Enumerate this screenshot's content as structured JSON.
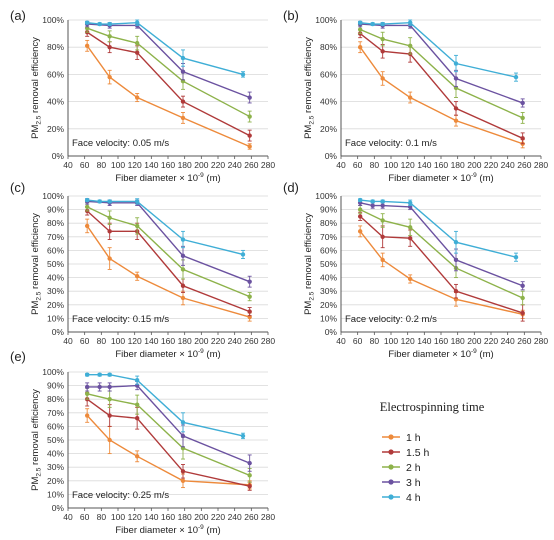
{
  "figure": {
    "series_names": [
      "1 h",
      "1.5 h",
      "2 h",
      "3 h",
      "4 h"
    ],
    "series_colors": [
      "#ED8A3B",
      "#B03A3A",
      "#8DB24A",
      "#6B52A0",
      "#3FAED6"
    ],
    "legend_title": "Electrospinning time",
    "ylabel_main": "PM",
    "ylabel_sub": "2.5",
    "ylabel_rest": " removal efficiency",
    "xlabel_main": "Fiber diameter × 10",
    "xlabel_sup": "-9",
    "xlabel_rest": " (m)"
  },
  "chart_data": [
    {
      "type": "line",
      "panel_label": "(a)",
      "annotation": "Face velocity: 0.05 m/s",
      "xlim": [
        40,
        280
      ],
      "ylim": [
        0,
        100
      ],
      "x_ticks": [
        40,
        60,
        80,
        100,
        120,
        140,
        160,
        180,
        200,
        220,
        240,
        260,
        280
      ],
      "y_ticks": [
        "0%",
        "20%",
        "40%",
        "60%",
        "80%",
        "100%"
      ],
      "series": [
        {
          "name": "1 h",
          "x": [
            63,
            90,
            123,
            178,
            258
          ],
          "y": [
            81,
            58,
            43,
            28,
            7
          ],
          "err": [
            4,
            5,
            3,
            4,
            2
          ]
        },
        {
          "name": "1.5 h",
          "x": [
            63,
            90,
            123,
            178,
            258
          ],
          "y": [
            91,
            80,
            76,
            40,
            15
          ],
          "err": [
            3,
            4,
            5,
            4,
            4
          ]
        },
        {
          "name": "2 h",
          "x": [
            63,
            90,
            123,
            178,
            258
          ],
          "y": [
            94,
            88,
            83,
            55,
            29
          ],
          "err": [
            3,
            4,
            5,
            6,
            4
          ]
        },
        {
          "name": "3 h",
          "x": [
            63,
            90,
            123,
            178,
            258
          ],
          "y": [
            97,
            96,
            96,
            62,
            43
          ],
          "err": [
            2,
            2,
            2,
            6,
            4
          ]
        },
        {
          "name": "4 h",
          "x": [
            63,
            78,
            90,
            123,
            178,
            250
          ],
          "y": [
            98,
            97,
            97,
            98,
            72,
            60
          ],
          "err": [
            1,
            1,
            1,
            2,
            6,
            2
          ]
        }
      ]
    },
    {
      "type": "line",
      "panel_label": "(b)",
      "annotation": "Face velocity: 0.1 m/s",
      "xlim": [
        40,
        280
      ],
      "ylim": [
        0,
        100
      ],
      "x_ticks": [
        40,
        60,
        80,
        100,
        120,
        140,
        160,
        180,
        200,
        220,
        240,
        260,
        280
      ],
      "y_ticks": [
        "0%",
        "20%",
        "40%",
        "60%",
        "80%",
        "100%"
      ],
      "series": [
        {
          "name": "1 h",
          "x": [
            63,
            90,
            123,
            178,
            258
          ],
          "y": [
            80,
            57,
            43,
            26,
            9
          ],
          "err": [
            4,
            5,
            4,
            4,
            3
          ]
        },
        {
          "name": "1.5 h",
          "x": [
            63,
            90,
            123,
            178,
            258
          ],
          "y": [
            90,
            77,
            75,
            35,
            13
          ],
          "err": [
            3,
            5,
            6,
            5,
            4
          ]
        },
        {
          "name": "2 h",
          "x": [
            63,
            90,
            123,
            178,
            258
          ],
          "y": [
            93,
            86,
            81,
            50,
            28
          ],
          "err": [
            3,
            5,
            6,
            7,
            4
          ]
        },
        {
          "name": "3 h",
          "x": [
            63,
            90,
            123,
            178,
            258
          ],
          "y": [
            97,
            96,
            96,
            57,
            39
          ],
          "err": [
            2,
            2,
            2,
            6,
            3
          ]
        },
        {
          "name": "4 h",
          "x": [
            63,
            78,
            90,
            123,
            178,
            250
          ],
          "y": [
            98,
            97,
            97,
            98,
            68,
            58
          ],
          "err": [
            1,
            1,
            1,
            2,
            6,
            3
          ]
        }
      ]
    },
    {
      "type": "line",
      "panel_label": "(c)",
      "annotation": "Face velocity: 0.15 m/s",
      "xlim": [
        40,
        280
      ],
      "ylim": [
        0,
        100
      ],
      "x_ticks": [
        40,
        60,
        80,
        100,
        120,
        140,
        160,
        180,
        200,
        220,
        240,
        260,
        280
      ],
      "y_ticks": [
        "0%",
        "10%",
        "20%",
        "30%",
        "40%",
        "50%",
        "60%",
        "70%",
        "80%",
        "90%",
        "100%"
      ],
      "series": [
        {
          "name": "1 h",
          "x": [
            63,
            90,
            123,
            178,
            258
          ],
          "y": [
            78,
            54,
            41,
            25,
            11
          ],
          "err": [
            5,
            8,
            3,
            5,
            3
          ]
        },
        {
          "name": "1.5 h",
          "x": [
            63,
            90,
            123,
            178,
            258
          ],
          "y": [
            89,
            74,
            74,
            34,
            15
          ],
          "err": [
            3,
            6,
            6,
            5,
            3
          ]
        },
        {
          "name": "2 h",
          "x": [
            63,
            90,
            123,
            178,
            258
          ],
          "y": [
            92,
            84,
            78,
            46,
            26
          ],
          "err": [
            3,
            5,
            6,
            7,
            3
          ]
        },
        {
          "name": "3 h",
          "x": [
            63,
            90,
            123,
            178,
            258
          ],
          "y": [
            96,
            95,
            95,
            56,
            37
          ],
          "err": [
            2,
            2,
            2,
            7,
            4
          ]
        },
        {
          "name": "4 h",
          "x": [
            63,
            78,
            90,
            123,
            178,
            250
          ],
          "y": [
            97,
            96,
            96,
            96,
            68,
            57
          ],
          "err": [
            1,
            1,
            1,
            2,
            6,
            3
          ]
        }
      ]
    },
    {
      "type": "line",
      "panel_label": "(d)",
      "annotation": "Face velocity: 0.2 m/s",
      "xlim": [
        40,
        280
      ],
      "ylim": [
        0,
        100
      ],
      "x_ticks": [
        40,
        60,
        80,
        100,
        120,
        140,
        160,
        180,
        200,
        220,
        240,
        260,
        280
      ],
      "y_ticks": [
        "0%",
        "10%",
        "20%",
        "30%",
        "40%",
        "50%",
        "60%",
        "70%",
        "80%",
        "90%",
        "100%"
      ],
      "series": [
        {
          "name": "1 h",
          "x": [
            63,
            90,
            123,
            178,
            258
          ],
          "y": [
            74,
            53,
            39,
            24,
            13
          ],
          "err": [
            4,
            5,
            3,
            5,
            3
          ]
        },
        {
          "name": "1.5 h",
          "x": [
            63,
            90,
            123,
            178,
            258
          ],
          "y": [
            85,
            70,
            69,
            30,
            14
          ],
          "err": [
            3,
            8,
            6,
            5,
            6
          ]
        },
        {
          "name": "2 h",
          "x": [
            63,
            90,
            123,
            178,
            258
          ],
          "y": [
            90,
            82,
            77,
            47,
            25
          ],
          "err": [
            3,
            5,
            6,
            7,
            5
          ]
        },
        {
          "name": "3 h",
          "x": [
            63,
            78,
            90,
            123,
            178,
            258
          ],
          "y": [
            95,
            93,
            93,
            92,
            53,
            34
          ],
          "err": [
            2,
            2,
            2,
            2,
            8,
            3
          ]
        },
        {
          "name": "4 h",
          "x": [
            63,
            78,
            90,
            123,
            178,
            250
          ],
          "y": [
            97,
            96,
            96,
            95,
            66,
            55
          ],
          "err": [
            1,
            1,
            1,
            2,
            8,
            3
          ]
        }
      ]
    },
    {
      "type": "line",
      "panel_label": "(e)",
      "annotation": "Face velocity: 0.25 m/s",
      "xlim": [
        40,
        280
      ],
      "ylim": [
        0,
        100
      ],
      "x_ticks": [
        40,
        60,
        80,
        100,
        120,
        140,
        160,
        180,
        200,
        220,
        240,
        260,
        280
      ],
      "y_ticks": [
        "0%",
        "10%",
        "20%",
        "30%",
        "40%",
        "50%",
        "60%",
        "70%",
        "80%",
        "90%",
        "100%"
      ],
      "series": [
        {
          "name": "1 h",
          "x": [
            63,
            90,
            123,
            178,
            258
          ],
          "y": [
            68,
            50,
            38,
            20,
            17
          ],
          "err": [
            5,
            10,
            4,
            5,
            3
          ]
        },
        {
          "name": "1.5 h",
          "x": [
            63,
            90,
            123,
            178,
            258
          ],
          "y": [
            80,
            68,
            66,
            27,
            16
          ],
          "err": [
            5,
            8,
            8,
            5,
            3
          ]
        },
        {
          "name": "2 h",
          "x": [
            63,
            90,
            123,
            178,
            258
          ],
          "y": [
            84,
            80,
            76,
            44,
            24
          ],
          "err": [
            4,
            6,
            7,
            8,
            5
          ]
        },
        {
          "name": "3 h",
          "x": [
            63,
            78,
            90,
            123,
            178,
            258
          ],
          "y": [
            89,
            89,
            89,
            90,
            53,
            33
          ],
          "err": [
            3,
            3,
            3,
            3,
            8,
            6
          ]
        },
        {
          "name": "4 h",
          "x": [
            63,
            78,
            90,
            123,
            178,
            250
          ],
          "y": [
            98,
            98,
            98,
            94,
            63,
            53
          ],
          "err": [
            1,
            1,
            1,
            3,
            7,
            2
          ]
        }
      ]
    }
  ]
}
